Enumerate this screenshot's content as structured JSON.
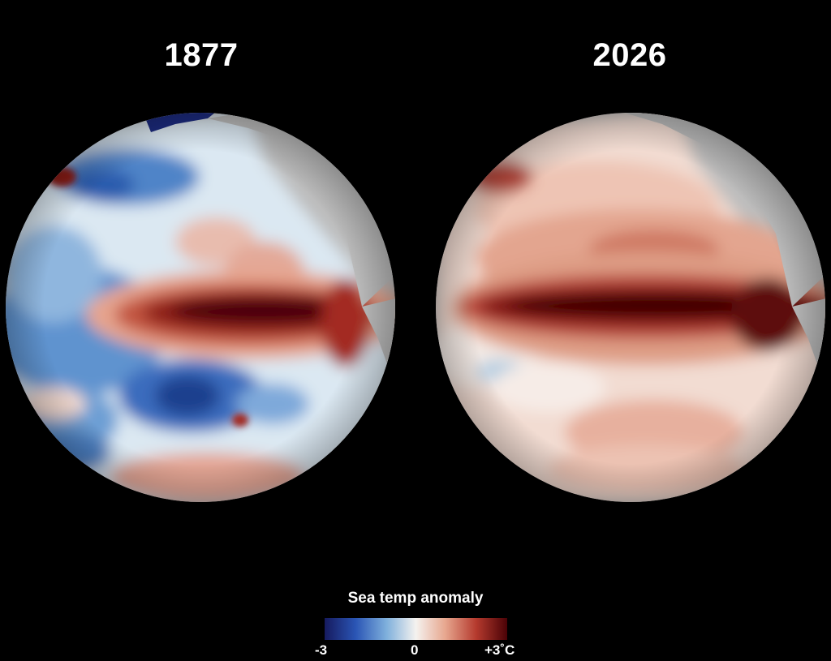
{
  "panels": [
    {
      "year": "1877",
      "phenomenon_colors": {
        "warm_tongue": "#4a0609",
        "cool": "#1e4f9a"
      }
    },
    {
      "year": "2026",
      "phenomenon_colors": {
        "warm_tongue": "#4a0609",
        "cool": "#e8b8a6"
      }
    }
  ],
  "legend": {
    "title": "Sea temp anomaly",
    "min_label": "-3",
    "mid_label": "0",
    "max_label": "+3˚C",
    "min_value": -3,
    "max_value": 3,
    "colors": [
      "#161a5e",
      "#2a55b5",
      "#7fb0dc",
      "#f5f2ef",
      "#e7a78f",
      "#b53a2e",
      "#4a0206"
    ]
  },
  "colors": {
    "background": "#000000",
    "land": "#bdbdbd"
  }
}
